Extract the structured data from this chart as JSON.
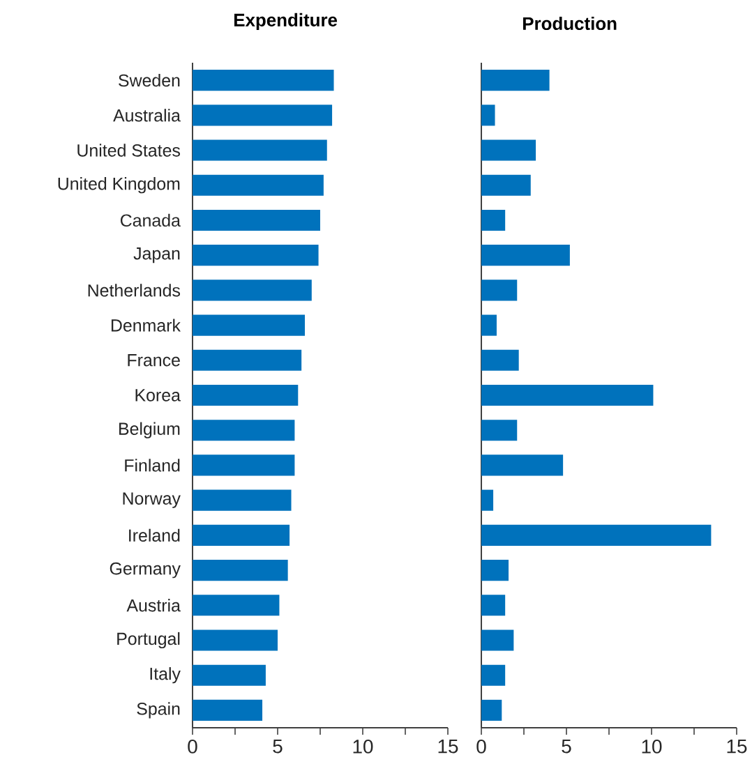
{
  "chart_data": [
    {
      "type": "bar",
      "orientation": "horizontal",
      "title": "Expenditure",
      "categories": [
        "Sweden",
        "Australia",
        "United States",
        "United Kingdom",
        "Canada",
        "Japan",
        "Netherlands",
        "Denmark",
        "France",
        "Korea",
        "Belgium",
        "Finland",
        "Norway",
        "Ireland",
        "Germany",
        "Austria",
        "Portugal",
        "Italy",
        "Spain"
      ],
      "values": [
        8.3,
        8.2,
        7.9,
        7.7,
        7.5,
        7.4,
        7.0,
        6.6,
        6.4,
        6.2,
        6.0,
        6.0,
        5.8,
        5.7,
        5.6,
        5.1,
        5.0,
        4.3,
        4.1
      ],
      "color": "#0072bc",
      "xlim": [
        0,
        15
      ],
      "xticks": [
        0,
        {
          "value": 2.5,
          "label": null
        },
        5,
        {
          "value": 7.5,
          "label": null
        },
        10,
        {
          "value": 12.5,
          "label": null
        },
        15
      ]
    },
    {
      "type": "bar",
      "orientation": "horizontal",
      "title": "Production",
      "categories": [
        null,
        null,
        null,
        null,
        null,
        null,
        null,
        null,
        null,
        null,
        null,
        null,
        null,
        null,
        null,
        null,
        null,
        null,
        null
      ],
      "values": [
        4.0,
        0.8,
        3.2,
        2.9,
        1.4,
        5.2,
        2.1,
        0.9,
        2.2,
        10.1,
        2.1,
        4.8,
        0.7,
        13.5,
        1.6,
        1.4,
        1.9,
        1.4,
        1.2
      ],
      "color": "#0072bc",
      "xlim": [
        0,
        15
      ],
      "xticks": [
        0,
        {
          "value": 2.5,
          "label": null
        },
        5,
        {
          "value": 7.5,
          "label": null
        },
        10,
        {
          "value": 12.5,
          "label": null
        },
        15
      ]
    }
  ]
}
